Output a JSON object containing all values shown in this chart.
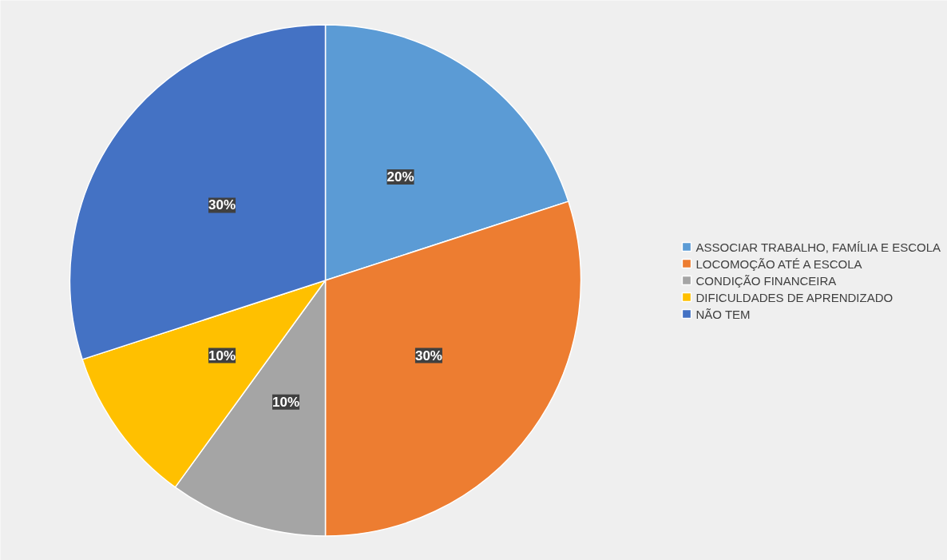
{
  "chart_data": {
    "type": "pie",
    "categories": [
      "ASSOCIAR TRABALHO, FAMÍLIA E ESCOLA",
      "LOCOMOÇÃO ATÉ A ESCOLA",
      "CONDIÇÃO FINANCEIRA",
      "DIFICULDADES DE APRENDIZADO",
      "NÃO TEM"
    ],
    "values": [
      20,
      30,
      10,
      10,
      30
    ],
    "colors": [
      "#5b9bd5",
      "#ed7d31",
      "#a5a5a5",
      "#ffc000",
      "#4472c4"
    ],
    "value_labels": [
      "20%",
      "30%",
      "10%",
      "10%",
      "30%"
    ],
    "legend": "right"
  }
}
